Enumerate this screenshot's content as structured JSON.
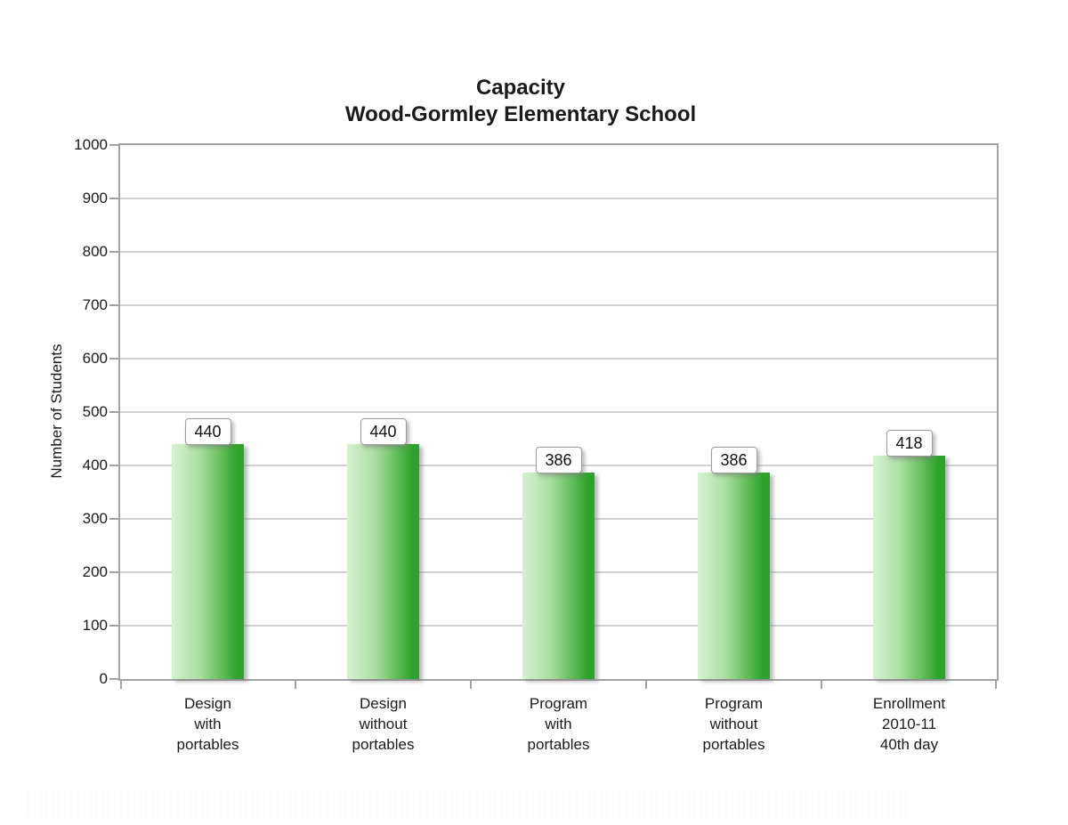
{
  "chart_data": {
    "type": "bar",
    "title_lines": [
      "Capacity",
      "Wood-Gormley Elementary School"
    ],
    "ylabel": "Number of Students",
    "ylim": [
      0,
      1000
    ],
    "yticks": [
      0,
      100,
      200,
      300,
      400,
      500,
      600,
      700,
      800,
      900,
      1000
    ],
    "grid": true,
    "legend": "none",
    "categories": [
      [
        "Design",
        "with",
        "portables"
      ],
      [
        "Design",
        "without",
        "portables"
      ],
      [
        "Program",
        "with",
        "portables"
      ],
      [
        "Program",
        "without",
        "portables"
      ],
      [
        "Enrollment",
        "2010-11",
        "40th day"
      ]
    ],
    "values": [
      440,
      440,
      386,
      386,
      418
    ],
    "value_labels": [
      "440",
      "440",
      "386",
      "386",
      "418"
    ],
    "colors": {
      "bar_gradient": [
        "#d7f1d2",
        "#abdfa2",
        "#5bb953",
        "#2ea32b"
      ],
      "axis": "#a3a3a3",
      "gridline": "#d2d2d2",
      "text": "#1a1a1a",
      "label_box_bg": "#ffffff",
      "label_box_border": "#9b9b9b"
    }
  }
}
